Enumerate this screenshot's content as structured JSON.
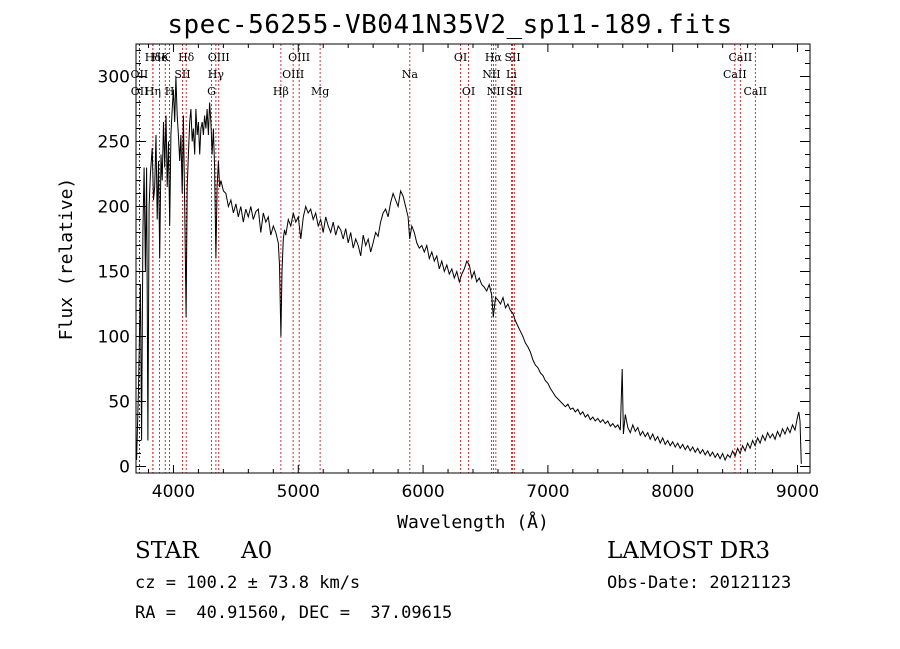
{
  "chart_data": {
    "type": "line",
    "title": "spec-56255-VB041N35V2_sp11-189.fits",
    "xlabel": "Wavelength (Å)",
    "ylabel": "Flux (relative)",
    "xlim": [
      3700,
      9100
    ],
    "ylim": [
      -5,
      325
    ],
    "xticks": [
      4000,
      5000,
      6000,
      7000,
      8000,
      9000
    ],
    "xtick_labels": [
      "4000",
      "5000",
      "6000",
      "7000",
      "8000",
      "9000"
    ],
    "yticks": [
      0,
      50,
      100,
      150,
      200,
      250,
      300
    ],
    "ytick_labels": [
      "0",
      "50",
      "100",
      "150",
      "200",
      "250",
      "300"
    ],
    "spectrum_points": [
      [
        3705,
        5
      ],
      [
        3720,
        60
      ],
      [
        3735,
        140
      ],
      [
        3745,
        20
      ],
      [
        3755,
        180
      ],
      [
        3765,
        230
      ],
      [
        3775,
        150
      ],
      [
        3785,
        230
      ],
      [
        3795,
        20
      ],
      [
        3805,
        200
      ],
      [
        3815,
        225
      ],
      [
        3830,
        245
      ],
      [
        3840,
        205
      ],
      [
        3850,
        215
      ],
      [
        3860,
        255
      ],
      [
        3870,
        190
      ],
      [
        3880,
        235
      ],
      [
        3890,
        160
      ],
      [
        3900,
        240
      ],
      [
        3910,
        220
      ],
      [
        3920,
        265
      ],
      [
        3930,
        230
      ],
      [
        3940,
        270
      ],
      [
        3950,
        215
      ],
      [
        3960,
        250
      ],
      [
        3970,
        185
      ],
      [
        3980,
        255
      ],
      [
        3990,
        275
      ],
      [
        4000,
        290
      ],
      [
        4010,
        265
      ],
      [
        4020,
        300
      ],
      [
        4030,
        270
      ],
      [
        4040,
        255
      ],
      [
        4050,
        235
      ],
      [
        4060,
        255
      ],
      [
        4070,
        210
      ],
      [
        4080,
        270
      ],
      [
        4090,
        200
      ],
      [
        4101,
        115
      ],
      [
        4110,
        215
      ],
      [
        4120,
        240
      ],
      [
        4130,
        265
      ],
      [
        4140,
        275
      ],
      [
        4150,
        250
      ],
      [
        4160,
        260
      ],
      [
        4170,
        240
      ],
      [
        4180,
        275
      ],
      [
        4190,
        255
      ],
      [
        4200,
        265
      ],
      [
        4210,
        240
      ],
      [
        4220,
        260
      ],
      [
        4230,
        265
      ],
      [
        4240,
        255
      ],
      [
        4250,
        270
      ],
      [
        4260,
        260
      ],
      [
        4270,
        275
      ],
      [
        4280,
        255
      ],
      [
        4290,
        280
      ],
      [
        4300,
        265
      ],
      [
        4310,
        240
      ],
      [
        4320,
        260
      ],
      [
        4330,
        230
      ],
      [
        4340,
        160
      ],
      [
        4350,
        215
      ],
      [
        4360,
        235
      ],
      [
        4370,
        215
      ],
      [
        4380,
        220
      ],
      [
        4400,
        212
      ],
      [
        4420,
        210
      ],
      [
        4440,
        200
      ],
      [
        4460,
        205
      ],
      [
        4480,
        195
      ],
      [
        4500,
        202
      ],
      [
        4520,
        192
      ],
      [
        4540,
        200
      ],
      [
        4560,
        188
      ],
      [
        4580,
        198
      ],
      [
        4600,
        192
      ],
      [
        4620,
        200
      ],
      [
        4640,
        190
      ],
      [
        4660,
        196
      ],
      [
        4680,
        198
      ],
      [
        4700,
        180
      ],
      [
        4720,
        195
      ],
      [
        4740,
        188
      ],
      [
        4760,
        192
      ],
      [
        4780,
        178
      ],
      [
        4800,
        185
      ],
      [
        4820,
        180
      ],
      [
        4840,
        172
      ],
      [
        4850,
        155
      ],
      [
        4861,
        100
      ],
      [
        4870,
        150
      ],
      [
        4880,
        175
      ],
      [
        4890,
        182
      ],
      [
        4900,
        178
      ],
      [
        4920,
        190
      ],
      [
        4940,
        185
      ],
      [
        4960,
        195
      ],
      [
        4980,
        188
      ],
      [
        5000,
        192
      ],
      [
        5020,
        175
      ],
      [
        5040,
        192
      ],
      [
        5060,
        200
      ],
      [
        5080,
        195
      ],
      [
        5100,
        198
      ],
      [
        5120,
        190
      ],
      [
        5140,
        195
      ],
      [
        5160,
        185
      ],
      [
        5180,
        190
      ],
      [
        5200,
        180
      ],
      [
        5220,
        192
      ],
      [
        5240,
        185
      ],
      [
        5260,
        180
      ],
      [
        5280,
        188
      ],
      [
        5300,
        178
      ],
      [
        5320,
        185
      ],
      [
        5340,
        182
      ],
      [
        5360,
        175
      ],
      [
        5380,
        183
      ],
      [
        5400,
        172
      ],
      [
        5420,
        180
      ],
      [
        5440,
        168
      ],
      [
        5460,
        175
      ],
      [
        5480,
        170
      ],
      [
        5500,
        162
      ],
      [
        5520,
        178
      ],
      [
        5540,
        170
      ],
      [
        5560,
        175
      ],
      [
        5580,
        165
      ],
      [
        5600,
        172
      ],
      [
        5620,
        180
      ],
      [
        5640,
        177
      ],
      [
        5660,
        188
      ],
      [
        5680,
        195
      ],
      [
        5700,
        198
      ],
      [
        5720,
        192
      ],
      [
        5740,
        203
      ],
      [
        5760,
        210
      ],
      [
        5780,
        205
      ],
      [
        5800,
        200
      ],
      [
        5820,
        212
      ],
      [
        5840,
        208
      ],
      [
        5860,
        200
      ],
      [
        5880,
        192
      ],
      [
        5893,
        175
      ],
      [
        5910,
        185
      ],
      [
        5930,
        180
      ],
      [
        5950,
        172
      ],
      [
        5970,
        168
      ],
      [
        5990,
        170
      ],
      [
        6010,
        165
      ],
      [
        6030,
        170
      ],
      [
        6050,
        160
      ],
      [
        6070,
        165
      ],
      [
        6090,
        158
      ],
      [
        6110,
        162
      ],
      [
        6130,
        152
      ],
      [
        6150,
        158
      ],
      [
        6170,
        150
      ],
      [
        6190,
        155
      ],
      [
        6210,
        148
      ],
      [
        6230,
        152
      ],
      [
        6250,
        145
      ],
      [
        6270,
        150
      ],
      [
        6290,
        142
      ],
      [
        6310,
        148
      ],
      [
        6330,
        152
      ],
      [
        6350,
        158
      ],
      [
        6370,
        155
      ],
      [
        6390,
        145
      ],
      [
        6410,
        150
      ],
      [
        6430,
        142
      ],
      [
        6450,
        145
      ],
      [
        6470,
        140
      ],
      [
        6490,
        138
      ],
      [
        6510,
        135
      ],
      [
        6530,
        140
      ],
      [
        6550,
        132
      ],
      [
        6563,
        115
      ],
      [
        6580,
        130
      ],
      [
        6600,
        128
      ],
      [
        6620,
        125
      ],
      [
        6640,
        130
      ],
      [
        6660,
        122
      ],
      [
        6680,
        125
      ],
      [
        6700,
        120
      ],
      [
        6720,
        118
      ],
      [
        6740,
        112
      ],
      [
        6760,
        108
      ],
      [
        6780,
        104
      ],
      [
        6800,
        100
      ],
      [
        6820,
        95
      ],
      [
        6840,
        92
      ],
      [
        6860,
        88
      ],
      [
        6880,
        82
      ],
      [
        6900,
        78
      ],
      [
        6920,
        76
      ],
      [
        6940,
        72
      ],
      [
        6960,
        70
      ],
      [
        6980,
        66
      ],
      [
        7000,
        64
      ],
      [
        7020,
        60
      ],
      [
        7040,
        57
      ],
      [
        7060,
        54
      ],
      [
        7080,
        52
      ],
      [
        7100,
        50
      ],
      [
        7120,
        48
      ],
      [
        7140,
        46
      ],
      [
        7160,
        48
      ],
      [
        7180,
        44
      ],
      [
        7200,
        45
      ],
      [
        7220,
        42
      ],
      [
        7240,
        44
      ],
      [
        7260,
        40
      ],
      [
        7280,
        42
      ],
      [
        7300,
        38
      ],
      [
        7320,
        40
      ],
      [
        7340,
        36
      ],
      [
        7360,
        38
      ],
      [
        7380,
        35
      ],
      [
        7400,
        37
      ],
      [
        7420,
        34
      ],
      [
        7440,
        36
      ],
      [
        7460,
        33
      ],
      [
        7480,
        35
      ],
      [
        7500,
        31
      ],
      [
        7520,
        33
      ],
      [
        7540,
        30
      ],
      [
        7560,
        32
      ],
      [
        7580,
        28
      ],
      [
        7595,
        75
      ],
      [
        7605,
        25
      ],
      [
        7620,
        40
      ],
      [
        7640,
        30
      ],
      [
        7660,
        26
      ],
      [
        7680,
        32
      ],
      [
        7700,
        27
      ],
      [
        7720,
        30
      ],
      [
        7740,
        24
      ],
      [
        7760,
        27
      ],
      [
        7780,
        23
      ],
      [
        7800,
        26
      ],
      [
        7820,
        21
      ],
      [
        7840,
        25
      ],
      [
        7860,
        20
      ],
      [
        7880,
        23
      ],
      [
        7900,
        18
      ],
      [
        7920,
        22
      ],
      [
        7940,
        17
      ],
      [
        7960,
        20
      ],
      [
        7980,
        16
      ],
      [
        8000,
        19
      ],
      [
        8020,
        15
      ],
      [
        8040,
        18
      ],
      [
        8060,
        14
      ],
      [
        8080,
        17
      ],
      [
        8100,
        13
      ],
      [
        8120,
        16
      ],
      [
        8140,
        12
      ],
      [
        8160,
        15
      ],
      [
        8180,
        11
      ],
      [
        8200,
        14
      ],
      [
        8220,
        10
      ],
      [
        8240,
        13
      ],
      [
        8260,
        9
      ],
      [
        8280,
        12
      ],
      [
        8300,
        8
      ],
      [
        8320,
        11
      ],
      [
        8340,
        7
      ],
      [
        8360,
        10
      ],
      [
        8380,
        6
      ],
      [
        8400,
        10
      ],
      [
        8420,
        5
      ],
      [
        8440,
        9
      ],
      [
        8460,
        7
      ],
      [
        8480,
        12
      ],
      [
        8500,
        8
      ],
      [
        8520,
        14
      ],
      [
        8540,
        10
      ],
      [
        8560,
        16
      ],
      [
        8580,
        12
      ],
      [
        8600,
        18
      ],
      [
        8620,
        14
      ],
      [
        8640,
        20
      ],
      [
        8660,
        16
      ],
      [
        8680,
        22
      ],
      [
        8700,
        18
      ],
      [
        8720,
        24
      ],
      [
        8740,
        20
      ],
      [
        8760,
        26
      ],
      [
        8780,
        22
      ],
      [
        8800,
        25
      ],
      [
        8820,
        21
      ],
      [
        8840,
        27
      ],
      [
        8860,
        23
      ],
      [
        8880,
        29
      ],
      [
        8900,
        25
      ],
      [
        8920,
        30
      ],
      [
        8940,
        26
      ],
      [
        8960,
        32
      ],
      [
        8980,
        28
      ],
      [
        9000,
        38
      ],
      [
        9010,
        42
      ],
      [
        9020,
        35
      ],
      [
        9030,
        2
      ]
    ],
    "spectral_lines": [
      {
        "label": "Hδ",
        "wave": 3835,
        "row": 1
      },
      {
        "label": "OII",
        "wave": 3727,
        "row": 2
      },
      {
        "label": "OII",
        "wave": 3729,
        "row": 3
      },
      {
        "label": "He",
        "wave": 3889,
        "row": 1
      },
      {
        "label": "Hη",
        "wave": 3835,
        "row": 3
      },
      {
        "label": "K",
        "wave": 3934,
        "row": 1
      },
      {
        "label": "H",
        "wave": 3969,
        "row": 3
      },
      {
        "label": "Hδ",
        "wave": 4102,
        "row": 1
      },
      {
        "label": "SII",
        "wave": 4072,
        "row": 2
      },
      {
        "label": "OIII",
        "wave": 4363,
        "row": 1
      },
      {
        "label": "Hγ",
        "wave": 4340,
        "row": 2
      },
      {
        "label": "G",
        "wave": 4305,
        "row": 3
      },
      {
        "label": "Hβ",
        "wave": 4861,
        "row": 3
      },
      {
        "label": "OIII",
        "wave": 5007,
        "row": 1
      },
      {
        "label": "OIII",
        "wave": 4959,
        "row": 2
      },
      {
        "label": "Mg",
        "wave": 5175,
        "row": 3
      },
      {
        "label": "Na",
        "wave": 5894,
        "row": 2
      },
      {
        "label": "OI",
        "wave": 6300,
        "row": 1
      },
      {
        "label": "OI",
        "wave": 6364,
        "row": 3
      },
      {
        "label": "Hα",
        "wave": 6563,
        "row": 1
      },
      {
        "label": "NII",
        "wave": 6548,
        "row": 2
      },
      {
        "label": "NII",
        "wave": 6583,
        "row": 3
      },
      {
        "label": "SII",
        "wave": 6717,
        "row": 1
      },
      {
        "label": "Li",
        "wave": 6708,
        "row": 2
      },
      {
        "label": "SII",
        "wave": 6731,
        "row": 3
      },
      {
        "label": "CaII",
        "wave": 8542,
        "row": 1
      },
      {
        "label": "CaII",
        "wave": 8498,
        "row": 2
      },
      {
        "label": "CaII",
        "wave": 8662,
        "row": 3
      }
    ]
  },
  "info": {
    "object_class": "STAR",
    "subclass": "A0",
    "survey": "LAMOST DR3",
    "redshift": "cz = 100.2 ± 73.8 km/s",
    "obs_date": "Obs-Date: 20121123",
    "coords": "RA =  40.91560, DEC =  37.09615"
  },
  "colors": {
    "spectrum": "#000000",
    "line_marker": "#cc0000",
    "axes": "#000000",
    "background": "#ffffff"
  }
}
